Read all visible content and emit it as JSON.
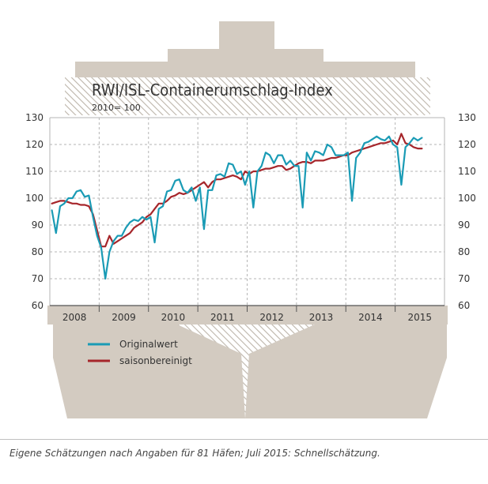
{
  "chart_data": {
    "type": "line",
    "title": "RWI/ISL-Containerumschlag-Index",
    "subtitle": "2010= 100",
    "xlabel": "",
    "ylabel": "",
    "ylim": [
      60,
      130
    ],
    "yticks": [
      60,
      70,
      80,
      90,
      100,
      110,
      120,
      130
    ],
    "year_labels": [
      "2008",
      "2009",
      "2010",
      "2011",
      "2012",
      "2013",
      "2014",
      "2015"
    ],
    "x_range": [
      "2008-01",
      "2015-07"
    ],
    "grid": true,
    "legend_position": "bottom-left",
    "series": [
      {
        "name": "Originalwert",
        "color": "#1a9bb5",
        "values": [
          95.5,
          87,
          97,
          98,
          100,
          100,
          102.5,
          103,
          100.5,
          101,
          93,
          86,
          81.5,
          70,
          80,
          84,
          86,
          86,
          89,
          91,
          92,
          91.5,
          93,
          92,
          93,
          83.5,
          96,
          97,
          102.5,
          103,
          106.5,
          107,
          103,
          102,
          104,
          99,
          104,
          88.5,
          103,
          103,
          108.5,
          109,
          108,
          113,
          112.5,
          109,
          110,
          105,
          110,
          96.5,
          110,
          112,
          117,
          116,
          113,
          116,
          116,
          112.5,
          114,
          112,
          112,
          96.5,
          117,
          114,
          117.5,
          117,
          116,
          120,
          119,
          116,
          116,
          116,
          117,
          99,
          115,
          117,
          120.5,
          121,
          122,
          123,
          122,
          121.5,
          123,
          120,
          119,
          105,
          119,
          120.5,
          122.5,
          121.5,
          122.5
        ]
      },
      {
        "name": "saisonbereinigt",
        "color": "#a6262b",
        "values": [
          98,
          98.5,
          99,
          99,
          98.5,
          98,
          98,
          97.5,
          97.5,
          97,
          94,
          88,
          82,
          82,
          86,
          83,
          84,
          85,
          86,
          87,
          89,
          90,
          91,
          93,
          94,
          96,
          98,
          98,
          99,
          100.5,
          101,
          102,
          101.5,
          102,
          103,
          104,
          105,
          106,
          104,
          106,
          107,
          107,
          107.5,
          108,
          108.5,
          108,
          107,
          110,
          109,
          110,
          110,
          110.5,
          111,
          111,
          111.5,
          112,
          112,
          110.5,
          111,
          112,
          113,
          113.5,
          113.5,
          113,
          114,
          114,
          114,
          114.5,
          115,
          115,
          115.5,
          116,
          116,
          117,
          117.5,
          118,
          118.5,
          119,
          119.5,
          120,
          120.5,
          120.5,
          121,
          121.5,
          120,
          124,
          120.5,
          120,
          119,
          118.5,
          118.5
        ]
      }
    ]
  },
  "footnote": "Eigene Schätzungen nach Angaben für 81 Häfen; Juli 2015: Schnellschätzung."
}
